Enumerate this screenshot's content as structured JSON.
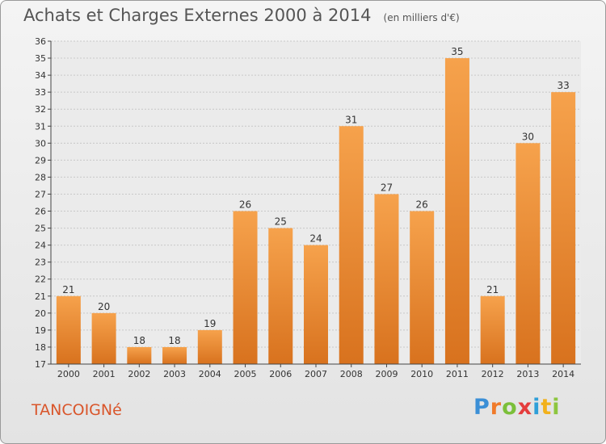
{
  "title": "Achats et Charges Externes 2000 à 2014",
  "unit": "(en milliers d'€)",
  "town": "TANCOIGNé",
  "logo": {
    "letters": [
      {
        "ch": "P",
        "color": "#3b8fd6"
      },
      {
        "ch": "r",
        "color": "#f07a2a"
      },
      {
        "ch": "o",
        "color": "#7bbf3a"
      },
      {
        "ch": "x",
        "color": "#e43c3c"
      },
      {
        "ch": "i",
        "color": "#2f9fd8"
      },
      {
        "ch": "t",
        "color": "#f2b11c"
      },
      {
        "ch": "i",
        "color": "#8dc63f"
      }
    ]
  },
  "colors": {
    "bar_light": "#f6a24c",
    "bar_dark": "#d8721e",
    "axis": "#444444",
    "grid": "#c8c8c8"
  },
  "chart_data": {
    "type": "bar",
    "title": "Achats et Charges Externes 2000 à 2014",
    "categories": [
      "2000",
      "2001",
      "2002",
      "2003",
      "2004",
      "2005",
      "2006",
      "2007",
      "2008",
      "2009",
      "2010",
      "2011",
      "2012",
      "2013",
      "2014"
    ],
    "values": [
      21,
      20,
      18,
      18,
      19,
      26,
      25,
      24,
      31,
      27,
      26,
      35,
      21,
      30,
      33
    ],
    "ylim": [
      17,
      36
    ],
    "yticks": [
      17,
      18,
      19,
      20,
      21,
      22,
      23,
      24,
      25,
      26,
      27,
      28,
      29,
      30,
      31,
      32,
      33,
      34,
      35,
      36
    ],
    "grid": true,
    "xlabel": "",
    "ylabel": ""
  }
}
